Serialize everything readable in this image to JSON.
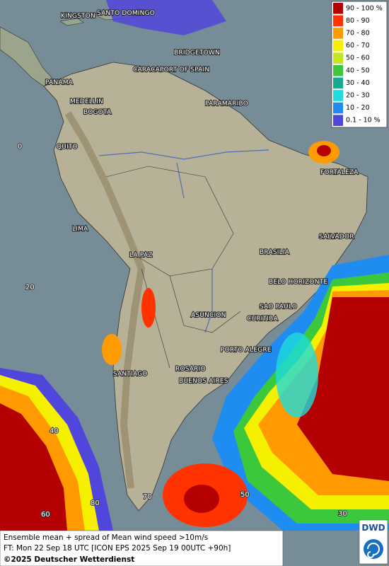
{
  "legend": {
    "entries": [
      {
        "label": "90 - 100 %",
        "color": "#b40000"
      },
      {
        "label": "80 - 90",
        "color": "#ff3200"
      },
      {
        "label": "70 - 80",
        "color": "#ff9b00"
      },
      {
        "label": "60 - 70",
        "color": "#f5f000"
      },
      {
        "label": "50 - 60",
        "color": "#c3e61e"
      },
      {
        "label": "40 - 50",
        "color": "#3cc83c"
      },
      {
        "label": "30 - 40",
        "color": "#14aa96"
      },
      {
        "label": "20 - 30",
        "color": "#1edcdc"
      },
      {
        "label": "10 - 20",
        "color": "#1e8cf0"
      },
      {
        "label": "0.1 - 10 %",
        "color": "#5046dc"
      }
    ]
  },
  "cities": [
    "KINGSTON",
    "SANTO DOMINGO",
    "BRIDGETOWN",
    "CARACAS",
    "PORT OF SPAIN",
    "PANAMA",
    "MEDELLIN",
    "BOGOTA",
    "PARAMARIBO",
    "QUITO",
    "FORTALEZA",
    "LIMA",
    "SALVADOR",
    "BRASILIA",
    "LA PAZ",
    "BELO HORIZONTE",
    "SAO PAULO",
    "ASUNCION",
    "CURITIBA",
    "PORTO ALEGRE",
    "SANTIAGO",
    "ROSARIO",
    "BUENOS AIRES"
  ],
  "grid_labels": [
    "0",
    "20",
    "40",
    "60",
    "80",
    "70",
    "50",
    "30"
  ],
  "footer": {
    "line1": "Ensemble mean + spread of Mean wind speed >10m/s",
    "line2": "FT: Mon 22 Sep 18 UTC [ICON EPS 2025 Sep 19 00UTC +90h]",
    "line3": "©2025 Deutscher Wetterdienst"
  },
  "logo": "DWD"
}
